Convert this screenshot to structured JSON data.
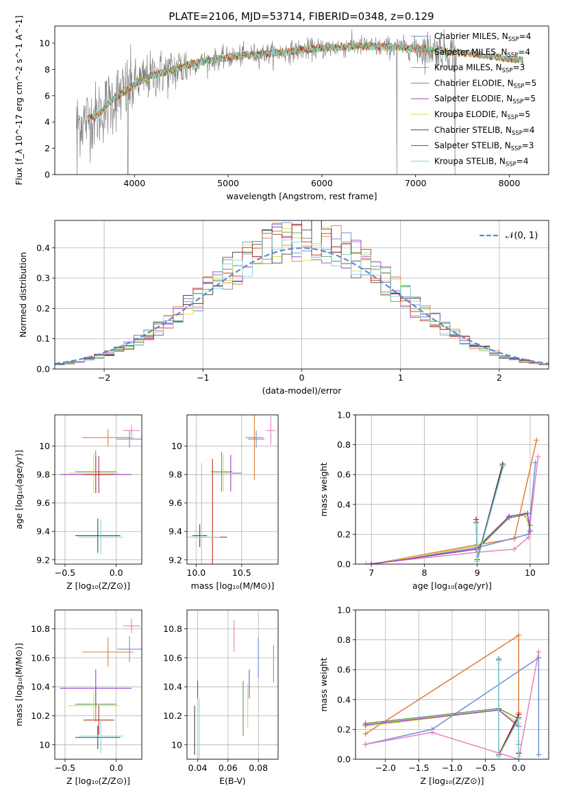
{
  "figure": {
    "title": "PLATE=2106, MJD=53714, FIBERID=0348, z=0.129"
  },
  "colors": {
    "chabrier_miles": "#6a8fd8",
    "salpeter_miles": "#e07b39",
    "kroupa_miles": "#e07b39",
    "chabrier_elodie": "#5f9a4e",
    "salpeter_elodie": "#9b3fc8",
    "kroupa_elodie": "#d6df52",
    "chabrier_stelib": "#444444",
    "salpeter_stelib": "#c2281f",
    "kroupa_stelib": "#7ed8df",
    "pink": "#e77fbf",
    "data_gray": "#808080",
    "gaussian": "#5b8bd6",
    "grid": "#b0b0b0"
  },
  "chart_data": [
    {
      "id": "spectrum",
      "type": "line",
      "xlabel": "wavelength [Angstrom, rest frame]",
      "ylabel": "Flux [f_λ 10^-17 erg cm^-2 s^-1 A^-1]",
      "xlim": [
        3150,
        8420
      ],
      "ylim": [
        0,
        11.3
      ],
      "xticks": [
        4000,
        5000,
        6000,
        7000,
        8000
      ],
      "yticks": [
        0,
        2,
        4,
        6,
        8,
        10
      ],
      "grid": false,
      "legend_placement": "right",
      "legend": [
        {
          "label": "Chabrier MILES, N",
          "sub": "SSP",
          "tail": "=4",
          "color_key": "chabrier_miles"
        },
        {
          "label": "Salpeter MILES, N",
          "sub": "SSP",
          "tail": "=4",
          "color_key": "salpeter_miles"
        },
        {
          "label": "Kroupa MILES, N",
          "sub": "SSP",
          "tail": "=3",
          "color_key": "kroupa_miles"
        },
        {
          "label": "Chabrier ELODIE, N",
          "sub": "SSP",
          "tail": "=5",
          "color_key": "chabrier_elodie"
        },
        {
          "label": "Salpeter ELODIE, N",
          "sub": "SSP",
          "tail": "=5",
          "color_key": "salpeter_elodie"
        },
        {
          "label": "Kroupa ELODIE, N",
          "sub": "SSP",
          "tail": "=5",
          "color_key": "kroupa_elodie"
        },
        {
          "label": "Chabrier STELIB, N",
          "sub": "SSP",
          "tail": "=4",
          "color_key": "chabrier_stelib"
        },
        {
          "label": "Salpeter STELIB, N",
          "sub": "SSP",
          "tail": "=3",
          "color_key": "salpeter_stelib"
        },
        {
          "label": "Kroupa STELIB, N",
          "sub": "SSP",
          "tail": "=4",
          "color_key": "kroupa_stelib"
        }
      ],
      "continuum": [
        [
          3380,
          3.9
        ],
        [
          3500,
          4.2
        ],
        [
          3600,
          4.5
        ],
        [
          3700,
          5.2
        ],
        [
          3800,
          5.9
        ],
        [
          3900,
          6.3
        ],
        [
          4000,
          6.9
        ],
        [
          4200,
          7.6
        ],
        [
          4400,
          7.9
        ],
        [
          4600,
          8.4
        ],
        [
          4800,
          8.7
        ],
        [
          5000,
          8.9
        ],
        [
          5200,
          9.1
        ],
        [
          5400,
          9.2
        ],
        [
          5600,
          9.3
        ],
        [
          5800,
          9.5
        ],
        [
          6000,
          9.6
        ],
        [
          6200,
          9.7
        ],
        [
          6400,
          9.8
        ],
        [
          6600,
          9.7
        ],
        [
          6800,
          9.7
        ],
        [
          7000,
          9.6
        ],
        [
          7200,
          9.5
        ],
        [
          7400,
          9.3
        ],
        [
          7600,
          9.2
        ],
        [
          7800,
          9.0
        ],
        [
          8000,
          8.8
        ],
        [
          8150,
          8.7
        ]
      ],
      "data_range": [
        3380,
        7440
      ],
      "model_range": [
        3500,
        8150
      ],
      "spikes": [
        {
          "x": 3388,
          "y": 0.0
        },
        {
          "x": 3930,
          "y": 0.0
        },
        {
          "x": 6800,
          "y": 0.0
        },
        {
          "x": 7420,
          "y": 0.0
        }
      ]
    },
    {
      "id": "residuals",
      "type": "histogram",
      "xlabel": "(data-model)/error",
      "ylabel": "Normed distribution",
      "xlim": [
        -2.5,
        2.5
      ],
      "ylim": [
        0,
        0.49
      ],
      "xticks": [
        -2,
        -1,
        0,
        1,
        2
      ],
      "xtick_labels": [
        "−2",
        "−1",
        "0",
        "1",
        "2"
      ],
      "yticks": [
        0,
        0.1,
        0.2,
        0.3,
        0.4
      ],
      "yticks_labels": [
        "0.0",
        "0.1",
        "0.2",
        "0.3",
        "0.4"
      ],
      "grid": true,
      "legend_placement": "top-right",
      "gaussian_label": "𝒩(0, 1)",
      "bin_width": 0.1,
      "bin_start": -2.5
    },
    {
      "id": "age_vs_Z",
      "type": "errorbar",
      "xlabel": "Z [log₁₀(Z/Z⊙)]",
      "ylabel": "age  [log₁₀(age/yr)]",
      "xlim": [
        -0.6,
        0.25
      ],
      "ylim": [
        9.17,
        10.22
      ],
      "xticks": [
        -0.5,
        0.0
      ],
      "xtick_labels": [
        "−0.5",
        "0.0"
      ],
      "yticks": [
        9.2,
        9.4,
        9.6,
        9.8,
        10.0
      ],
      "grid": true,
      "points": [
        {
          "c": "chabrier_miles",
          "x": 0.13,
          "xerr": 0.13,
          "y": 10.05,
          "yerr": 0.06
        },
        {
          "c": "salpeter_miles",
          "x": -0.08,
          "xerr": 0.25,
          "y": 10.06,
          "yerr": 0.06
        },
        {
          "c": "pink",
          "x": 0.15,
          "xerr": 0.08,
          "y": 10.11,
          "yerr": 0.04
        },
        {
          "c": "chabrier_elodie",
          "x": -0.2,
          "xerr": 0.2,
          "y": 9.82,
          "yerr": 0.15
        },
        {
          "c": "salpeter_elodie",
          "x": -0.2,
          "xerr": 0.35,
          "y": 9.8,
          "yerr": 0.13
        },
        {
          "c": "kroupa_elodie",
          "x": -0.22,
          "xerr": 0.25,
          "y": 9.81,
          "yerr": 0.14
        },
        {
          "c": "chabrier_stelib",
          "x": -0.18,
          "xerr": 0.22,
          "y": 9.37,
          "yerr": 0.12
        },
        {
          "c": "salpeter_stelib",
          "x": -0.17,
          "xerr": 0.15,
          "y": 9.8,
          "yerr": 0.13
        },
        {
          "c": "kroupa_stelib",
          "x": -0.15,
          "xerr": 0.22,
          "y": 9.36,
          "yerr": 0.12
        }
      ]
    },
    {
      "id": "age_vs_mass",
      "type": "errorbar",
      "xlabel": "mass [log₁₀(M/M⊙)]",
      "ylabel": "",
      "xlim": [
        9.9,
        10.9
      ],
      "ylim": [
        9.17,
        10.22
      ],
      "xticks": [
        10.0,
        10.5
      ],
      "xtick_labels": [
        "10.0",
        "10.5"
      ],
      "yticks": [
        9.2,
        9.4,
        9.6,
        9.8,
        10.0
      ],
      "grid": true,
      "points": [
        {
          "c": "chabrier_miles",
          "x": 10.66,
          "xerr": 0.09,
          "y": 10.05,
          "yerr": 0.06
        },
        {
          "c": "salpeter_miles",
          "x": 10.64,
          "xerr": 0.1,
          "y": 10.06,
          "yerr": 0.3
        },
        {
          "c": "pink",
          "x": 10.82,
          "xerr": 0.05,
          "y": 10.11,
          "yerr": 0.1
        },
        {
          "c": "chabrier_elodie",
          "x": 10.28,
          "xerr": 0.12,
          "y": 9.82,
          "yerr": 0.14
        },
        {
          "c": "salpeter_elodie",
          "x": 10.38,
          "xerr": 0.12,
          "y": 9.81,
          "yerr": 0.13
        },
        {
          "c": "kroupa_elodie",
          "x": 10.3,
          "xerr": 0.1,
          "y": 9.81,
          "yerr": 0.13
        },
        {
          "c": "chabrier_stelib",
          "x": 10.04,
          "xerr": 0.08,
          "y": 9.37,
          "yerr": 0.08
        },
        {
          "c": "salpeter_stelib",
          "x": 10.18,
          "xerr": 0.16,
          "y": 9.36,
          "yerr": 0.55
        },
        {
          "c": "kroupa_stelib",
          "x": 10.06,
          "xerr": 0.2,
          "y": 9.36,
          "yerr": 0.52
        }
      ]
    },
    {
      "id": "weight_vs_age",
      "type": "line",
      "xlabel": "age  [log₁₀(age/yr)]",
      "ylabel": "mass weight",
      "xlim": [
        6.7,
        10.35
      ],
      "ylim": [
        0,
        1.0
      ],
      "xticks": [
        7,
        8,
        9,
        10
      ],
      "yticks": [
        0,
        0.2,
        0.4,
        0.6,
        0.8,
        1.0
      ],
      "grid": true,
      "series": [
        {
          "c": "salpeter_miles",
          "x": [
            7.0,
            9.0,
            9.7,
            10.12
          ],
          "y": [
            0.0,
            0.13,
            0.17,
            0.83
          ]
        },
        {
          "c": "chabrier_miles",
          "x": [
            7.0,
            9.0,
            9.97,
            10.1
          ],
          "y": [
            0.0,
            0.11,
            0.2,
            0.68
          ]
        },
        {
          "c": "pink",
          "x": [
            6.9,
            9.0,
            9.7,
            9.97,
            10.15
          ],
          "y": [
            0.0,
            0.08,
            0.1,
            0.18,
            0.72
          ]
        },
        {
          "c": "chabrier_elodie",
          "x": [
            7.0,
            9.0,
            9.6,
            9.9,
            10.0
          ],
          "y": [
            0.0,
            0.1,
            0.31,
            0.33,
            0.26
          ]
        },
        {
          "c": "kroupa_elodie",
          "x": [
            7.0,
            9.0,
            9.6,
            9.9,
            10.0
          ],
          "y": [
            0.0,
            0.12,
            0.32,
            0.34,
            0.23
          ]
        },
        {
          "c": "salpeter_elodie",
          "x": [
            7.0,
            8.98,
            9.6,
            9.95,
            10.0
          ],
          "y": [
            0.0,
            0.1,
            0.32,
            0.34,
            0.22
          ]
        },
        {
          "c": "salpeter_stelib",
          "x": [
            8.98,
            9.0,
            9.48
          ],
          "y": [
            0.3,
            0.02,
            0.66
          ]
        },
        {
          "c": "chabrier_stelib",
          "x": [
            8.98,
            9.0,
            9.48
          ],
          "y": [
            0.28,
            0.03,
            0.67
          ]
        },
        {
          "c": "kroupa_stelib",
          "x": [
            8.98,
            9.0,
            9.5
          ],
          "y": [
            0.27,
            0.02,
            0.66
          ]
        }
      ]
    },
    {
      "id": "mass_vs_Z",
      "type": "errorbar",
      "xlabel": "Z [log₁₀(Z/Z⊙)]",
      "ylabel": "mass [log₁₀(M/M⊙)]",
      "xlim": [
        -0.6,
        0.25
      ],
      "ylim": [
        9.9,
        10.93
      ],
      "xticks": [
        -0.5,
        0.0
      ],
      "xtick_labels": [
        "−0.5",
        "0.0"
      ],
      "yticks": [
        10.0,
        10.2,
        10.4,
        10.6,
        10.8
      ],
      "grid": true,
      "points": [
        {
          "c": "chabrier_miles",
          "x": 0.13,
          "xerr": 0.12,
          "y": 10.66,
          "yerr": 0.09
        },
        {
          "c": "salpeter_miles",
          "x": -0.08,
          "xerr": 0.25,
          "y": 10.64,
          "yerr": 0.1
        },
        {
          "c": "pink",
          "x": 0.15,
          "xerr": 0.08,
          "y": 10.82,
          "yerr": 0.05
        },
        {
          "c": "chabrier_elodie",
          "x": -0.2,
          "xerr": 0.2,
          "y": 10.28,
          "yerr": 0.12
        },
        {
          "c": "salpeter_elodie",
          "x": -0.2,
          "xerr": 0.35,
          "y": 10.39,
          "yerr": 0.13
        },
        {
          "c": "kroupa_elodie",
          "x": -0.22,
          "xerr": 0.25,
          "y": 10.27,
          "yerr": 0.1
        },
        {
          "c": "chabrier_stelib",
          "x": -0.18,
          "xerr": 0.22,
          "y": 10.05,
          "yerr": 0.08
        },
        {
          "c": "salpeter_stelib",
          "x": -0.17,
          "xerr": 0.15,
          "y": 10.17,
          "yerr": 0.1
        },
        {
          "c": "kroupa_stelib",
          "x": -0.15,
          "xerr": 0.22,
          "y": 10.06,
          "yerr": 0.12
        }
      ]
    },
    {
      "id": "mass_vs_ebv",
      "type": "errorbar",
      "xlabel": "E(B-V)",
      "ylabel": "",
      "xlim": [
        0.033,
        0.093
      ],
      "ylim": [
        9.9,
        10.93
      ],
      "xticks": [
        0.04,
        0.06,
        0.08
      ],
      "yticks": [
        10.0,
        10.2,
        10.4,
        10.6,
        10.8
      ],
      "grid": true,
      "points": [
        {
          "c": "salpeter_miles",
          "x": 0.09,
          "xerr": 0,
          "y": 10.56,
          "yerr": 0.13
        },
        {
          "c": "chabrier_miles",
          "x": 0.08,
          "xerr": 0,
          "y": 10.6,
          "yerr": 0.14
        },
        {
          "c": "pink",
          "x": 0.064,
          "xerr": 0,
          "y": 10.75,
          "yerr": 0.11
        },
        {
          "c": "salpeter_elodie",
          "x": 0.074,
          "xerr": 0,
          "y": 10.42,
          "yerr": 0.1
        },
        {
          "c": "kroupa_elodie",
          "x": 0.073,
          "xerr": 0,
          "y": 10.27,
          "yerr": 0.15
        },
        {
          "c": "chabrier_elodie",
          "x": 0.07,
          "xerr": 0,
          "y": 10.25,
          "yerr": 0.19
        },
        {
          "c": "salpeter_stelib",
          "x": 0.04,
          "xerr": 0,
          "y": 10.38,
          "yerr": 0.06
        },
        {
          "c": "kroupa_stelib",
          "x": 0.041,
          "xerr": 0,
          "y": 10.08,
          "yerr": 0.24
        },
        {
          "c": "chabrier_stelib",
          "x": 0.038,
          "xerr": 0,
          "y": 10.1,
          "yerr": 0.17
        }
      ]
    },
    {
      "id": "weight_vs_Z",
      "type": "line",
      "xlabel": "Z [log₁₀(Z/Z⊙)]",
      "ylabel": "mass weight",
      "xlim": [
        -2.45,
        0.45
      ],
      "ylim": [
        0,
        1.0
      ],
      "xticks": [
        -2.0,
        -1.5,
        -1.0,
        -0.5,
        0.0
      ],
      "xtick_labels": [
        "−2.0",
        "−1.5",
        "−1.0",
        "−0.5",
        "0.0"
      ],
      "yticks": [
        0,
        0.2,
        0.4,
        0.6,
        0.8,
        1.0
      ],
      "grid": true,
      "series": [
        {
          "c": "salpeter_miles",
          "x": [
            -2.3,
            0.0,
            0.0,
            0.0
          ],
          "y": [
            0.17,
            0.83,
            0.31,
            0.0
          ]
        },
        {
          "c": "chabrier_miles",
          "x": [
            -2.3,
            -1.3,
            0.3,
            0.3
          ],
          "y": [
            0.1,
            0.2,
            0.68,
            0.03
          ]
        },
        {
          "c": "pink",
          "x": [
            -2.3,
            -1.3,
            0.0,
            0.3
          ],
          "y": [
            0.1,
            0.18,
            0.0,
            0.72
          ]
        },
        {
          "c": "chabrier_elodie",
          "x": [
            -2.3,
            -0.3,
            0.0,
            0.0
          ],
          "y": [
            0.24,
            0.34,
            0.27,
            0.1
          ]
        },
        {
          "c": "kroupa_elodie",
          "x": [
            -2.3,
            -0.3,
            0.0,
            0.0
          ],
          "y": [
            0.22,
            0.33,
            0.24,
            0.12
          ]
        },
        {
          "c": "salpeter_elodie",
          "x": [
            -2.3,
            -0.3,
            0.0
          ],
          "y": [
            0.23,
            0.33,
            0.22
          ]
        },
        {
          "c": "chabrier_stelib",
          "x": [
            -0.3,
            -0.3,
            0.0,
            0.0
          ],
          "y": [
            0.67,
            0.03,
            0.28,
            0.04
          ]
        },
        {
          "c": "salpeter_stelib",
          "x": [
            -0.3,
            0.0,
            0.0
          ],
          "y": [
            0.03,
            0.3,
            0.04
          ]
        },
        {
          "c": "kroupa_stelib",
          "x": [
            -0.3,
            -0.3,
            0.0,
            0.0
          ],
          "y": [
            0.66,
            0.02,
            0.27,
            0.02
          ]
        }
      ]
    }
  ]
}
